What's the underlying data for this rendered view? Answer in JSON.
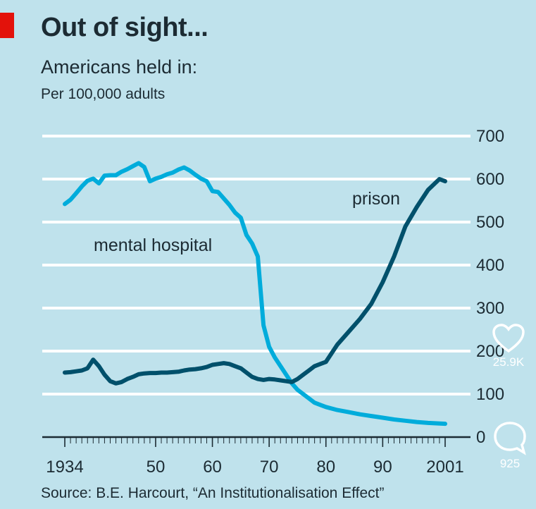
{
  "title": "Out of sight...",
  "subtitle": "Americans held in:",
  "unit": "Per 100,000 adults",
  "source": "Source: B.E. Harcourt, “An Institutionalisation Effect”",
  "overlay": {
    "likes": "25.9K",
    "comments": "925"
  },
  "chart_data": {
    "type": "line",
    "title": "Out of sight...",
    "subtitle": "Americans held in:",
    "ylabel": "Per 100,000 adults",
    "xlim": [
      1934,
      2001
    ],
    "ylim": [
      0,
      700
    ],
    "y_ticks": [
      0,
      100,
      200,
      300,
      400,
      500,
      600,
      700
    ],
    "y_tick_labels": [
      "0",
      "100",
      "200",
      "300",
      "400",
      "500",
      "600",
      "700"
    ],
    "x_ticks": [
      1934,
      1950,
      1960,
      1970,
      1980,
      1990,
      2001
    ],
    "x_tick_labels": [
      "1934",
      "50",
      "60",
      "70",
      "80",
      "90",
      "2001"
    ],
    "grid": "horizontal",
    "series": [
      {
        "name": "mental hospital",
        "label": "mental hospital",
        "color": "#00acdb",
        "x": [
          1934,
          1935,
          1936,
          1937,
          1938,
          1939,
          1940,
          1941,
          1942,
          1943,
          1944,
          1945,
          1946,
          1947,
          1948,
          1949,
          1950,
          1951,
          1952,
          1953,
          1954,
          1955,
          1956,
          1957,
          1958,
          1959,
          1960,
          1961,
          1962,
          1963,
          1964,
          1965,
          1966,
          1967,
          1968,
          1969,
          1970,
          1971,
          1972,
          1973,
          1974,
          1975,
          1976,
          1977,
          1978,
          1979,
          1980,
          1982,
          1984,
          1986,
          1988,
          1990,
          1992,
          1994,
          1996,
          1998,
          2001
        ],
        "values": [
          542,
          552,
          567,
          583,
          596,
          601,
          590,
          608,
          609,
          609,
          617,
          623,
          630,
          637,
          628,
          595,
          601,
          605,
          611,
          615,
          622,
          627,
          620,
          610,
          601,
          595,
          572,
          570,
          555,
          540,
          522,
          510,
          470,
          450,
          420,
          260,
          210,
          185,
          165,
          145,
          125,
          110,
          100,
          90,
          80,
          75,
          70,
          63,
          58,
          53,
          49,
          45,
          41,
          38,
          35,
          33,
          31
        ]
      },
      {
        "name": "prison",
        "label": "prison",
        "color": "#00506b",
        "x": [
          1934,
          1935,
          1936,
          1937,
          1938,
          1939,
          1940,
          1941,
          1942,
          1943,
          1944,
          1945,
          1946,
          1947,
          1948,
          1949,
          1950,
          1951,
          1952,
          1953,
          1954,
          1955,
          1956,
          1957,
          1958,
          1959,
          1960,
          1961,
          1962,
          1963,
          1964,
          1965,
          1966,
          1967,
          1968,
          1969,
          1970,
          1971,
          1972,
          1973,
          1974,
          1975,
          1976,
          1977,
          1978,
          1979,
          1980,
          1982,
          1984,
          1986,
          1988,
          1990,
          1992,
          1994,
          1996,
          1998,
          2000,
          2001
        ],
        "values": [
          150,
          151,
          153,
          155,
          160,
          180,
          165,
          145,
          130,
          125,
          128,
          135,
          140,
          146,
          148,
          149,
          149,
          150,
          150,
          151,
          152,
          155,
          157,
          158,
          160,
          163,
          168,
          170,
          172,
          170,
          165,
          160,
          150,
          140,
          135,
          133,
          135,
          134,
          132,
          130,
          128,
          135,
          145,
          155,
          165,
          170,
          175,
          215,
          245,
          275,
          310,
          360,
          420,
          490,
          535,
          575,
          600,
          595
        ]
      }
    ]
  }
}
